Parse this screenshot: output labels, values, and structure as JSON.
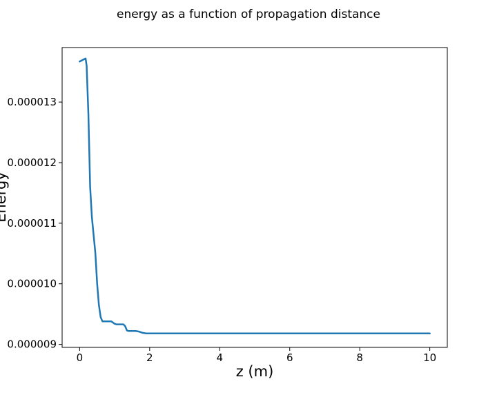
{
  "chart_data": {
    "type": "line",
    "title": "energy as a function of propagation distance",
    "xlabel": "z (m)",
    "ylabel": "Energy",
    "xlim": [
      -0.5,
      10.5
    ],
    "ylim": [
      8.95e-06,
      1.39e-05
    ],
    "xticks": [
      0,
      2,
      4,
      6,
      8,
      10
    ],
    "xtick_labels": [
      "0",
      "2",
      "4",
      "6",
      "8",
      "10"
    ],
    "yticks": [
      9e-06,
      1e-05,
      1.1e-05,
      1.2e-05,
      1.3e-05
    ],
    "ytick_labels": [
      "0.000009",
      "0.000010",
      "0.000011",
      "0.000012",
      "0.000013"
    ],
    "grid": false,
    "series": [
      {
        "color": "#1f77b4",
        "x": [
          0,
          0.1,
          0.17,
          0.2,
          0.25,
          0.3,
          0.35,
          0.4,
          0.45,
          0.5,
          0.55,
          0.6,
          0.65,
          0.7,
          0.8,
          0.9,
          1.0,
          1.05,
          1.15,
          1.25,
          1.3,
          1.35,
          1.4,
          1.5,
          1.6,
          1.7,
          1.8,
          1.9,
          2.0,
          3.0,
          4.0,
          5.0,
          6.0,
          7.0,
          8.0,
          9.0,
          10.0
        ],
        "y": [
          1.367e-05,
          1.37e-05,
          1.372e-05,
          1.36e-05,
          1.28e-05,
          1.16e-05,
          1.11e-05,
          1.08e-05,
          1.05e-05,
          1e-05,
          9.65e-06,
          9.45e-06,
          9.38e-06,
          9.38e-06,
          9.38e-06,
          9.38e-06,
          9.34e-06,
          9.33e-06,
          9.33e-06,
          9.33e-06,
          9.3e-06,
          9.23e-06,
          9.22e-06,
          9.22e-06,
          9.22e-06,
          9.21e-06,
          9.19e-06,
          9.18e-06,
          9.18e-06,
          9.18e-06,
          9.18e-06,
          9.18e-06,
          9.18e-06,
          9.18e-06,
          9.18e-06,
          9.18e-06,
          9.18e-06
        ]
      }
    ]
  }
}
